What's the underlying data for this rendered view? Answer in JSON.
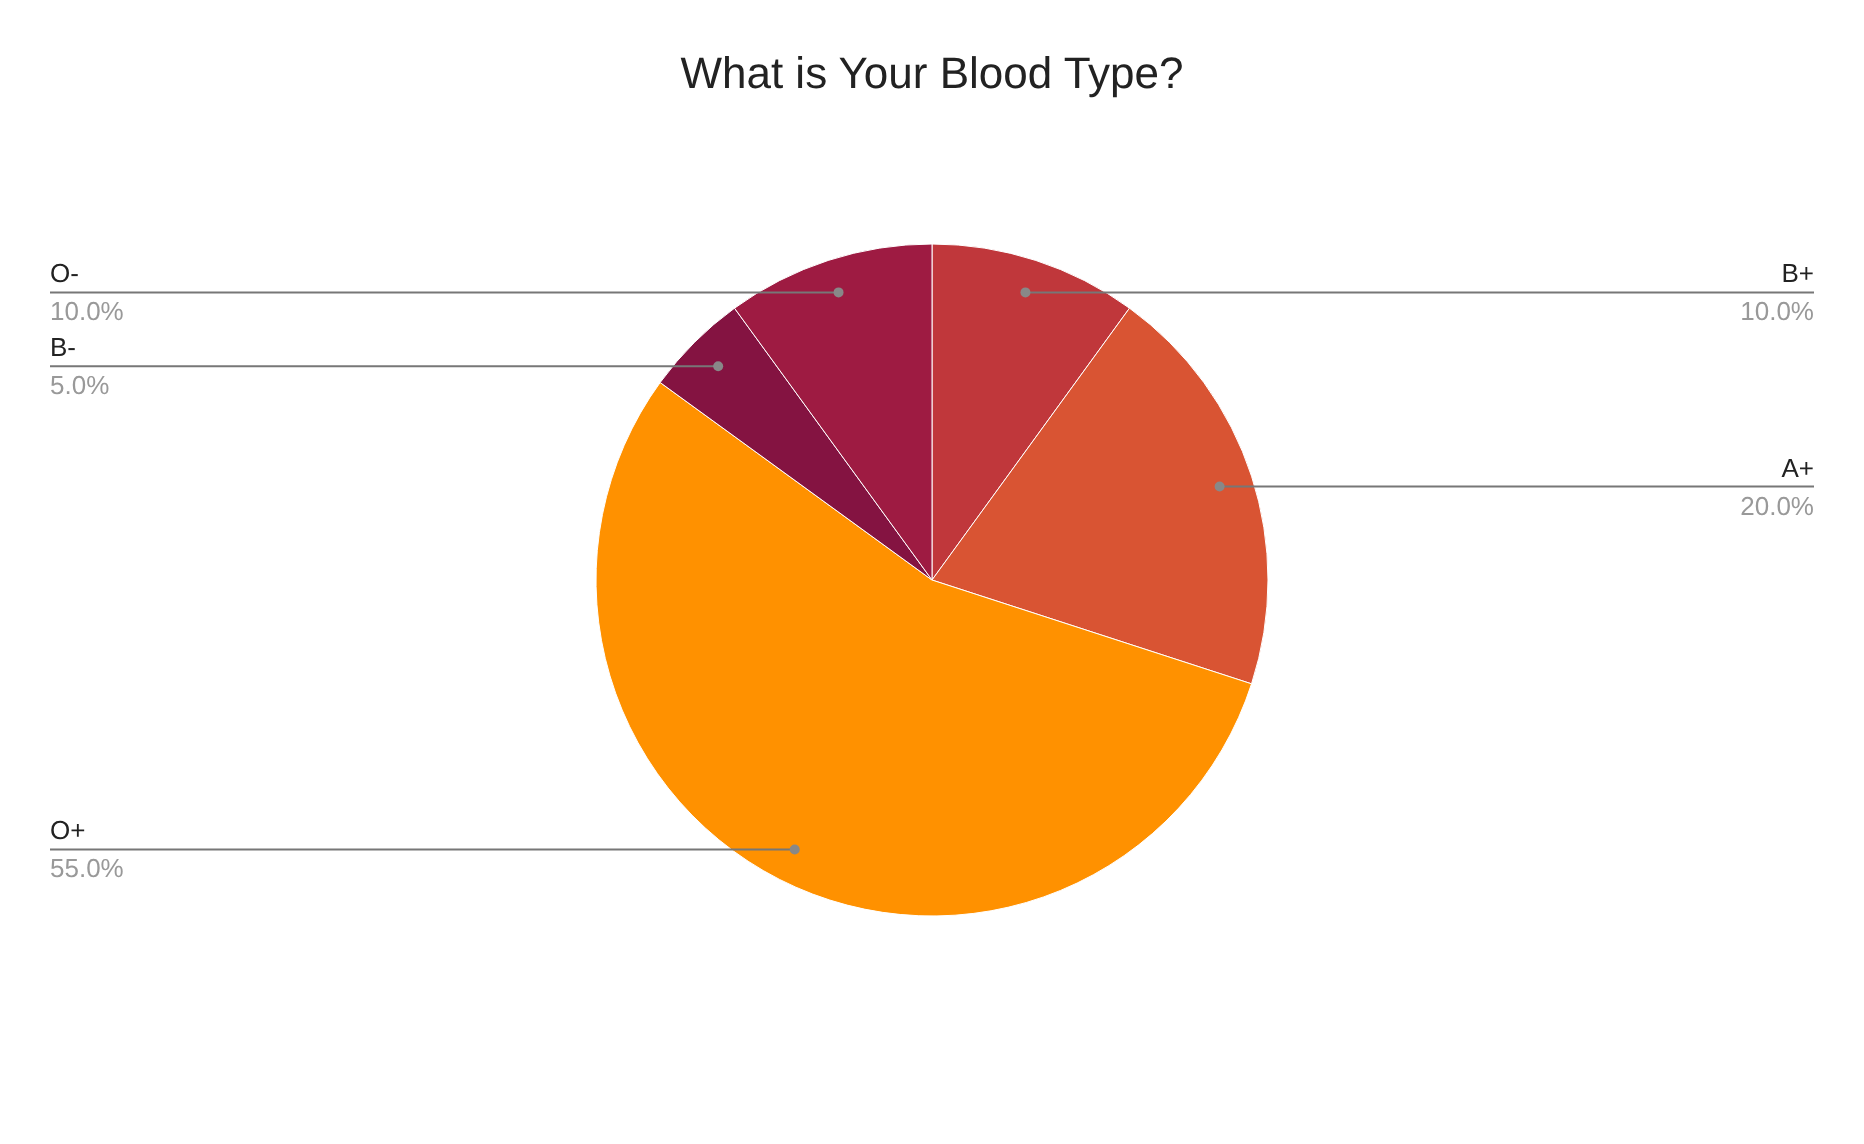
{
  "chart_data": {
    "type": "pie",
    "title": "What is Your Blood Type?",
    "categories": [
      "B+",
      "A+",
      "O+",
      "B-",
      "O-"
    ],
    "values": [
      10,
      20,
      55,
      5,
      10
    ],
    "value_labels": [
      "10.0%",
      "20.0%",
      "55.0%",
      "5.0%",
      "10.0%"
    ],
    "colors": [
      "#c0373b",
      "#d95433",
      "#ff9100",
      "#841341",
      "#9e1b42"
    ]
  }
}
